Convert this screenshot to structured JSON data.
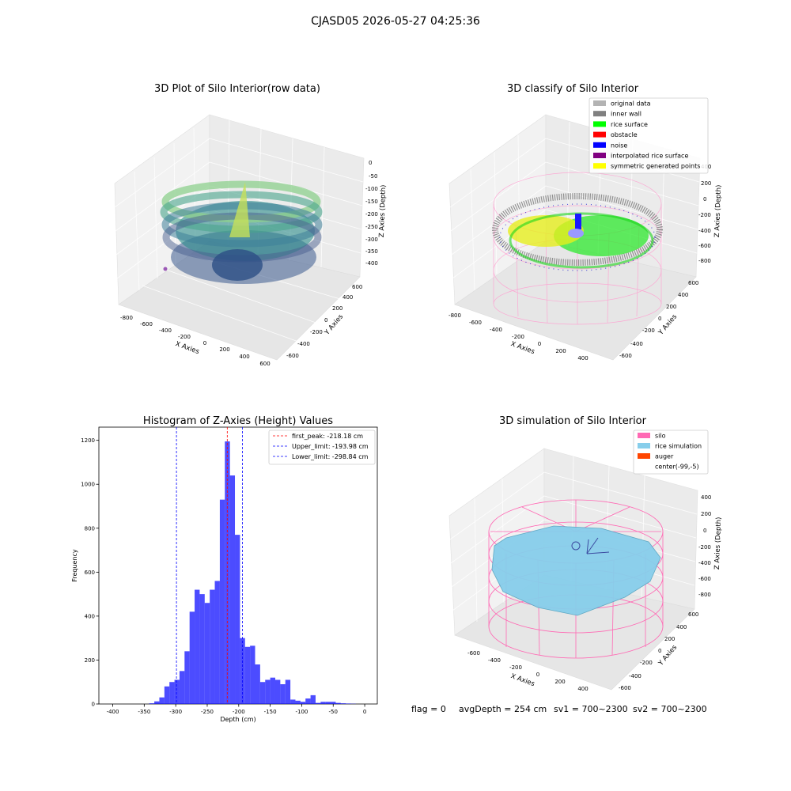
{
  "suptitle": "CJASD05 2026-05-27 04:25:36",
  "panels": {
    "raw": {
      "title": "3D Plot of Silo Interior(row data)",
      "xlabel": "X Axies",
      "ylabel": "Y Axies",
      "zlabel": "Z Axies (Depth)",
      "xticks": [
        "-800",
        "-600",
        "-400",
        "-200",
        "0",
        "200",
        "400",
        "600"
      ],
      "yticks": [
        "-600",
        "-400",
        "-200",
        "0",
        "200",
        "400",
        "600"
      ],
      "zticks": [
        "0",
        "-50",
        "-100",
        "-150",
        "-200",
        "-250",
        "-300",
        "-350",
        "-400"
      ]
    },
    "classify": {
      "title": "3D classify of Silo Interior",
      "xlabel": "X Axies",
      "ylabel": "Y Axies",
      "zlabel": "Z Axies (Depth)",
      "xticks": [
        "-800",
        "-600",
        "-400",
        "-200",
        "0",
        "200",
        "400"
      ],
      "yticks": [
        "-600",
        "-400",
        "-200",
        "0",
        "200",
        "400",
        "600"
      ],
      "zticks": [
        "400",
        "200",
        "0",
        "-200",
        "-400",
        "-600",
        "-800"
      ],
      "legend": [
        {
          "label": "original data",
          "color": "#b3b3b3"
        },
        {
          "label": "inner wall",
          "color": "#808080"
        },
        {
          "label": "rice surface",
          "color": "#00ff00"
        },
        {
          "label": "obstacle",
          "color": "#ff0000"
        },
        {
          "label": "noise",
          "color": "#0000ff"
        },
        {
          "label": "interpolated rice surface",
          "color": "#800080"
        },
        {
          "label": "symmetric generated points",
          "color": "#ffff00"
        }
      ]
    },
    "simulation": {
      "title": "3D simulation of Silo Interior",
      "xlabel": "X Axies",
      "ylabel": "Y Axies",
      "zlabel": "Z Axies (Depth)",
      "xticks": [
        "-600",
        "-400",
        "-200",
        "0",
        "200",
        "400"
      ],
      "yticks": [
        "-600",
        "-400",
        "-200",
        "0",
        "200",
        "400",
        "600"
      ],
      "zticks": [
        "400",
        "200",
        "0",
        "-200",
        "-400",
        "-600",
        "-800"
      ],
      "legend": [
        {
          "label": "silo",
          "color": "#ff69b4"
        },
        {
          "label": "rice simulation",
          "color": "#87ceeb"
        },
        {
          "label": "auger",
          "color": "#ff4500"
        },
        {
          "label": "center(-99,-5)",
          "color": ""
        }
      ]
    }
  },
  "status": {
    "flag": "flag = 0",
    "avg_depth": "avgDepth = 254 cm",
    "sv1": "sv1 = 700~2300",
    "sv2": "sv2 = 700~2300"
  },
  "chart_data": {
    "type": "bar",
    "title": "Histogram of Z-Axies (Height) Values",
    "xlabel": "Depth (cm)",
    "ylabel": "Frequency",
    "xlim": [
      -422,
      20
    ],
    "ylim": [
      0,
      1260
    ],
    "xticks": [
      -400,
      -350,
      -300,
      -250,
      -200,
      -150,
      -100,
      -50,
      0
    ],
    "yticks": [
      0,
      200,
      400,
      600,
      800,
      1000,
      1200
    ],
    "bar_color": "#0000ff",
    "bin_width": 8,
    "bins_left": [
      -342,
      -334,
      -326,
      -318,
      -310,
      -302,
      -294,
      -286,
      -278,
      -270,
      -262,
      -254,
      -246,
      -238,
      -230,
      -222,
      -214,
      -206,
      -198,
      -190,
      -182,
      -174,
      -166,
      -158,
      -150,
      -142,
      -134,
      -126,
      -118,
      -110,
      -102,
      -94,
      -86,
      -78,
      -70,
      -62,
      -54,
      -46,
      -38,
      -30,
      -22,
      -14
    ],
    "counts": [
      3,
      12,
      30,
      80,
      100,
      110,
      150,
      240,
      420,
      520,
      500,
      460,
      520,
      560,
      930,
      1195,
      1040,
      770,
      300,
      260,
      265,
      180,
      100,
      110,
      120,
      110,
      90,
      110,
      20,
      15,
      10,
      25,
      40,
      5,
      10,
      10,
      10,
      5,
      3,
      2,
      1,
      0
    ],
    "vlines": [
      {
        "x": -218.18,
        "color": "#ff0000",
        "label": "first_peak: -218.18 cm"
      },
      {
        "x": -193.98,
        "color": "#0000ff",
        "label": "Upper_limit: -193.98 cm"
      },
      {
        "x": -298.84,
        "color": "#0000ff",
        "label": "Lower_limit: -298.84 cm"
      }
    ],
    "legend_position": "upper-right",
    "grid": false
  }
}
